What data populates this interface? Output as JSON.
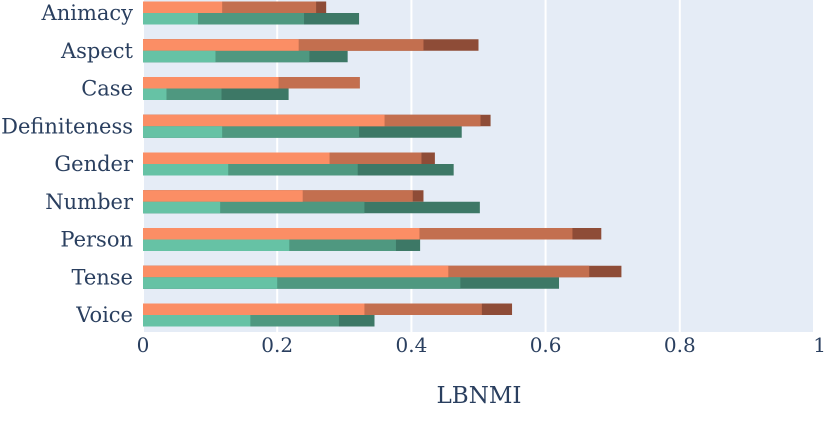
{
  "chart_data": {
    "type": "bar",
    "orientation": "horizontal",
    "barmode": "overlay",
    "categories": [
      "Animacy",
      "Aspect",
      "Case",
      "Definiteness",
      "Gender",
      "Number",
      "Person",
      "Tense",
      "Voice"
    ],
    "xlabel": "LBNMI",
    "xlim": [
      0,
      1
    ],
    "xticks": [
      "0",
      "0.2",
      "0.4",
      "0.6",
      "0.8",
      "1"
    ],
    "grid": true,
    "plot_background": "#e5ecf6",
    "series": [
      {
        "group": "upper",
        "layer": 3,
        "color": "#8e4c37",
        "values": [
          0.273,
          0.5,
          0.323,
          0.518,
          0.435,
          0.418,
          0.683,
          0.713,
          0.55
        ]
      },
      {
        "group": "upper",
        "layer": 2,
        "color": "#c36f4f",
        "values": [
          0.258,
          0.418,
          0.323,
          0.503,
          0.415,
          0.402,
          0.64,
          0.665,
          0.505
        ]
      },
      {
        "group": "upper",
        "layer": 1,
        "color": "#fb8e65",
        "values": [
          0.118,
          0.232,
          0.202,
          0.36,
          0.278,
          0.238,
          0.412,
          0.455,
          0.33
        ]
      },
      {
        "group": "lower",
        "layer": 3,
        "color": "#3d7866",
        "values": [
          0.322,
          0.305,
          0.217,
          0.475,
          0.463,
          0.502,
          0.413,
          0.62,
          0.345
        ]
      },
      {
        "group": "lower",
        "layer": 2,
        "color": "#4f9880",
        "values": [
          0.24,
          0.248,
          0.117,
          0.322,
          0.32,
          0.33,
          0.377,
          0.473,
          0.292
        ]
      },
      {
        "group": "lower",
        "layer": 1,
        "color": "#66c2a5",
        "values": [
          0.082,
          0.108,
          0.035,
          0.118,
          0.127,
          0.115,
          0.218,
          0.2,
          0.16
        ]
      }
    ]
  }
}
